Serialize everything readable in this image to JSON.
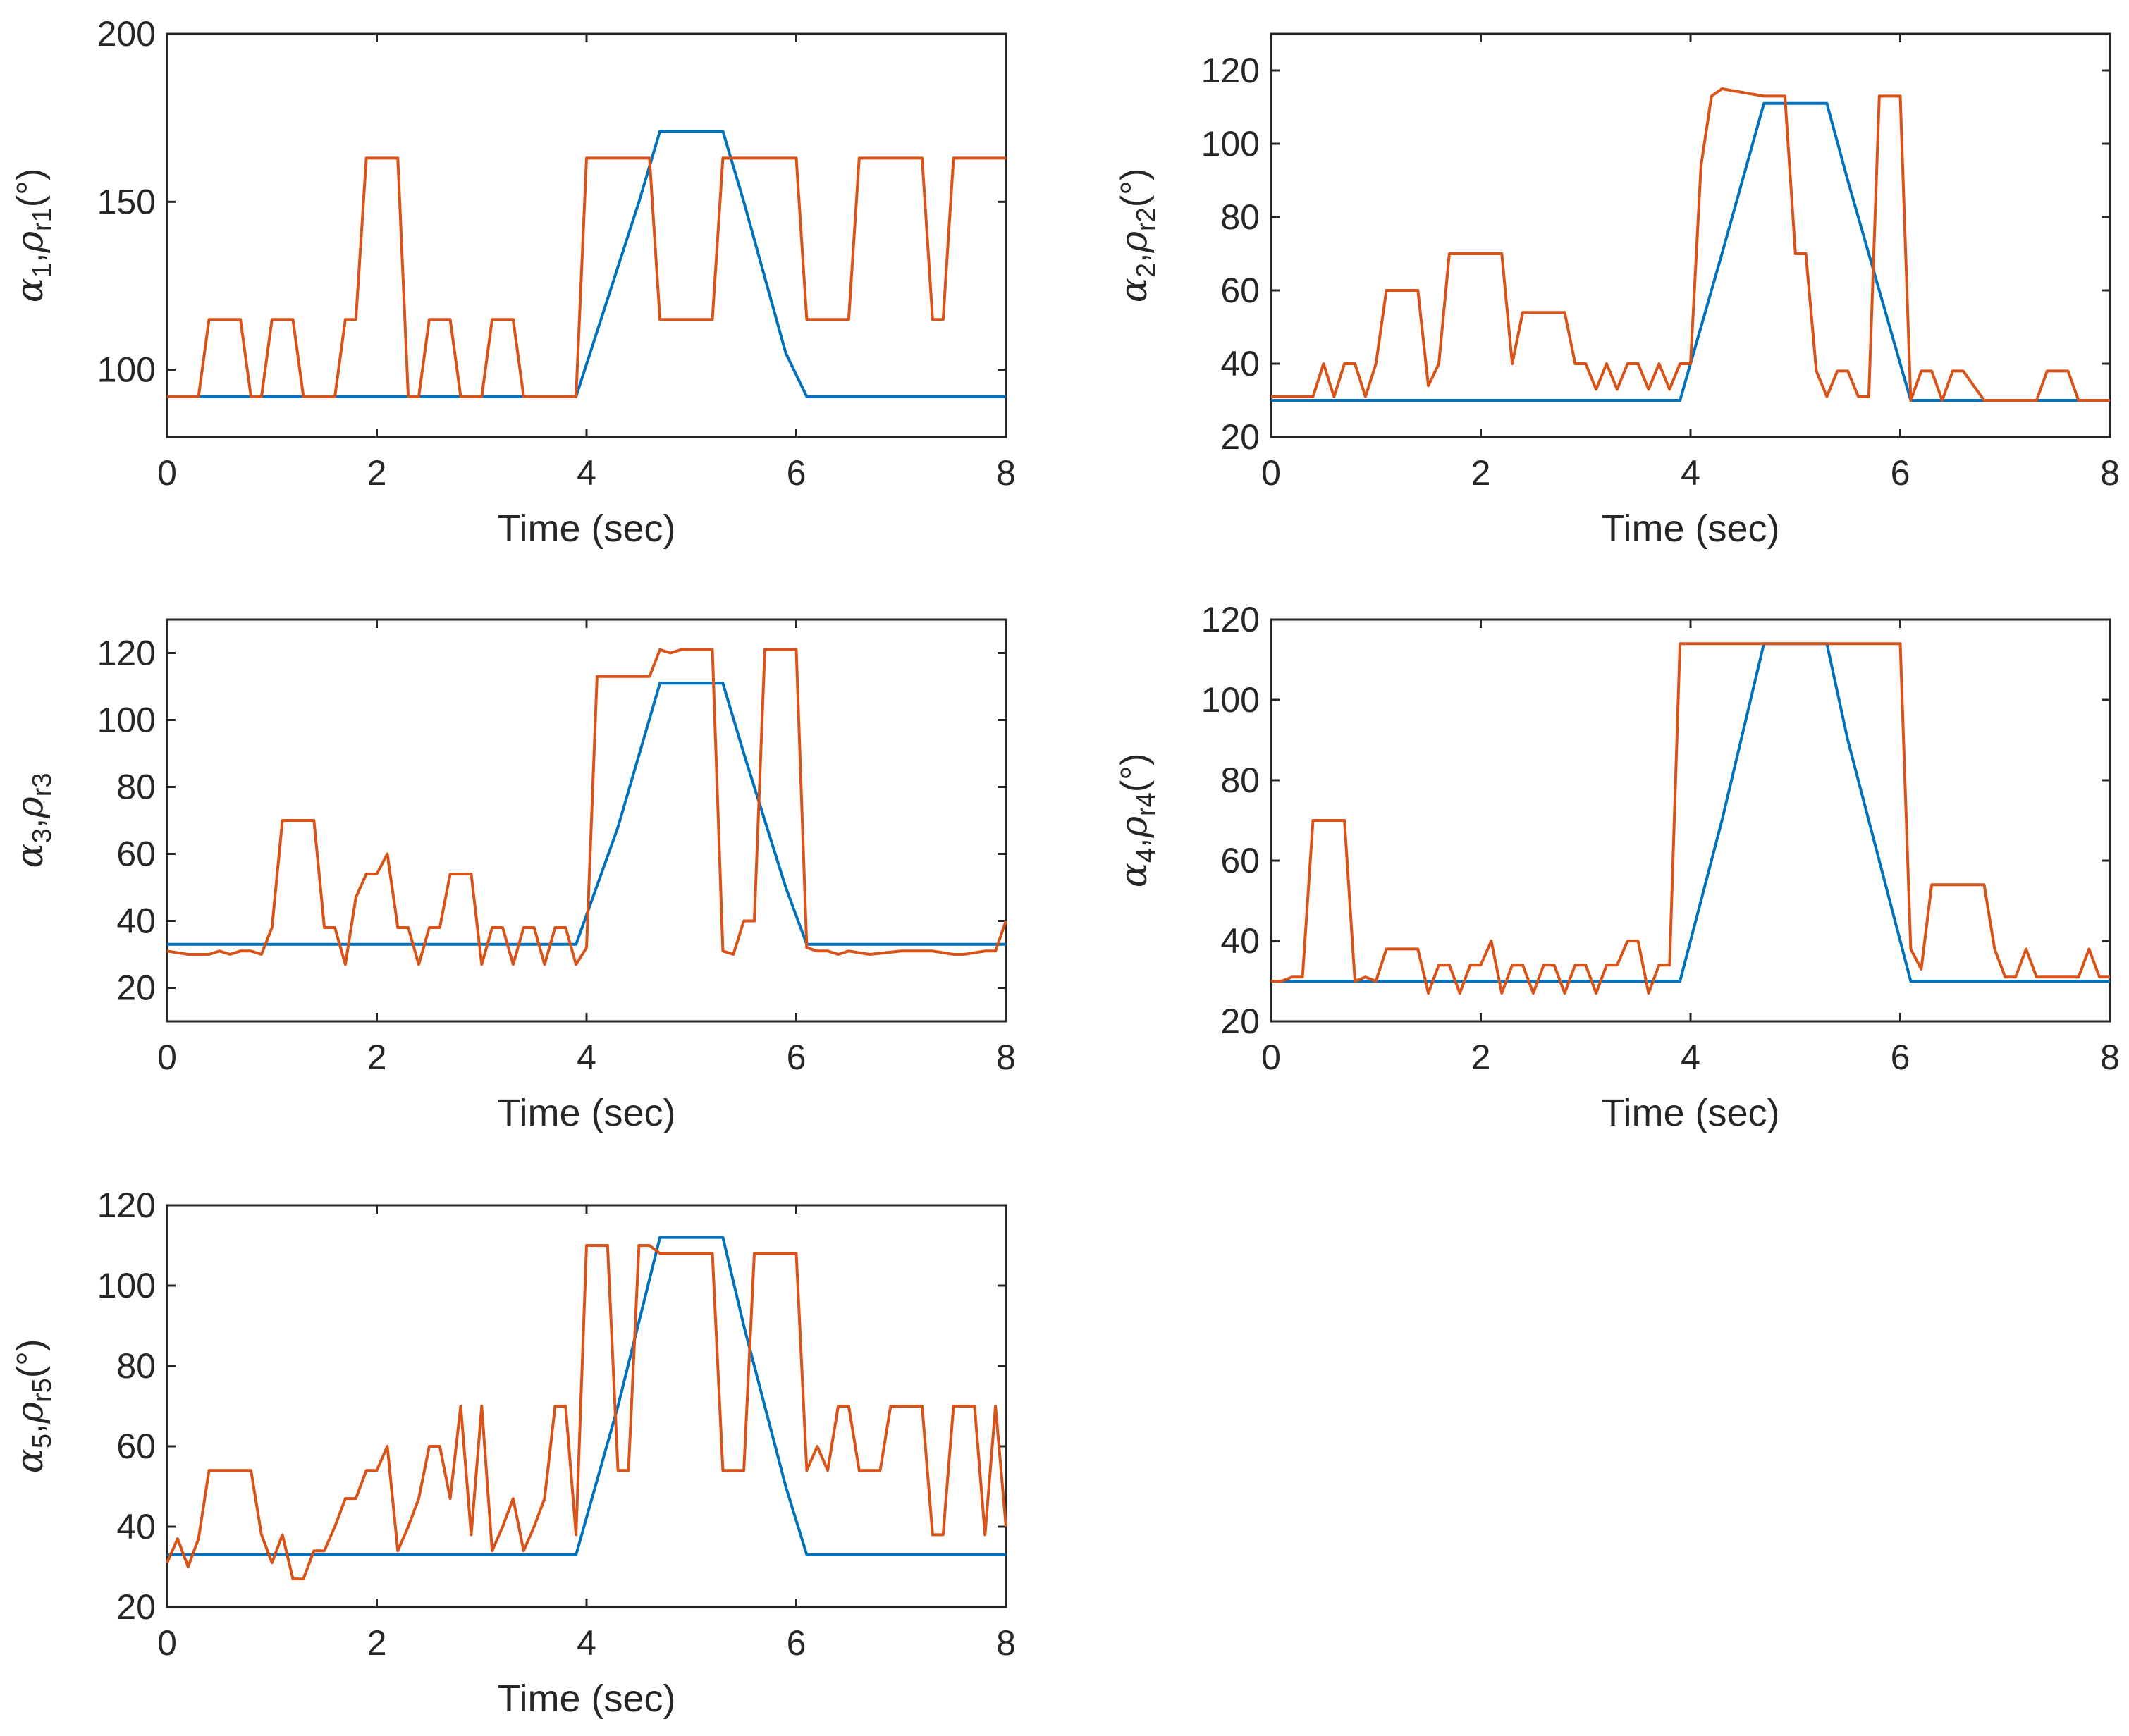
{
  "chart_data": [
    {
      "type": "line",
      "xlabel": "Time (sec)",
      "ylabel": {
        "greek": "α",
        "idx": "1",
        "rho": "ρ",
        "sub": "r1",
        "unit": "(°)"
      },
      "xlim": [
        0,
        8
      ],
      "ylim": [
        80,
        200
      ],
      "xticks": [
        0,
        2,
        4,
        6,
        8
      ],
      "yticks": [
        100,
        150,
        200
      ],
      "series": [
        {
          "name": "alpha",
          "color": "#0072BD",
          "x": [
            0,
            3.9,
            4.5,
            4.7,
            5.3,
            5.5,
            5.9,
            6.1,
            8
          ],
          "y": [
            92,
            92,
            150,
            171,
            171,
            150,
            105,
            92,
            92
          ]
        },
        {
          "name": "rho",
          "color": "#D95319",
          "x": [
            0,
            0.3,
            0.4,
            0.7,
            0.8,
            0.9,
            1.0,
            1.2,
            1.3,
            1.6,
            1.7,
            1.8,
            1.9,
            2.2,
            2.3,
            2.4,
            2.5,
            2.7,
            2.8,
            3.0,
            3.1,
            3.3,
            3.4,
            3.9,
            4.0,
            4.6,
            4.7,
            5.2,
            5.3,
            6.0,
            6.1,
            6.5,
            6.6,
            7.2,
            7.3,
            7.4,
            7.5,
            8.0
          ],
          "y": [
            92,
            92,
            115,
            115,
            92,
            92,
            115,
            115,
            92,
            92,
            115,
            115,
            163,
            163,
            92,
            92,
            115,
            115,
            92,
            92,
            115,
            115,
            92,
            92,
            163,
            163,
            115,
            115,
            163,
            163,
            115,
            115,
            163,
            163,
            115,
            115,
            163,
            163
          ]
        }
      ]
    },
    {
      "type": "line",
      "xlabel": "Time (sec)",
      "ylabel": {
        "greek": "α",
        "idx": "2",
        "rho": "ρ",
        "sub": "r2",
        "unit": "(°)"
      },
      "xlim": [
        0,
        8
      ],
      "ylim": [
        20,
        130
      ],
      "xticks": [
        0,
        2,
        4,
        6,
        8
      ],
      "yticks": [
        20,
        40,
        60,
        80,
        100,
        120
      ],
      "series": [
        {
          "name": "alpha",
          "color": "#0072BD",
          "x": [
            0,
            3.9,
            4.3,
            4.7,
            5.3,
            5.5,
            5.9,
            6.1,
            8
          ],
          "y": [
            30,
            30,
            70,
            111,
            111,
            90,
            50,
            30,
            30
          ]
        },
        {
          "name": "rho",
          "color": "#D95319",
          "x": [
            0,
            0.4,
            0.5,
            0.6,
            0.7,
            0.8,
            0.9,
            1.0,
            1.1,
            1.4,
            1.5,
            1.6,
            1.7,
            2.2,
            2.3,
            2.4,
            2.8,
            2.9,
            3.0,
            3.1,
            3.2,
            3.3,
            3.4,
            3.5,
            3.6,
            3.7,
            3.8,
            3.9,
            4.0,
            4.1,
            4.2,
            4.3,
            4.7,
            4.8,
            4.9,
            5.0,
            5.1,
            5.2,
            5.3,
            5.4,
            5.5,
            5.6,
            5.7,
            5.8,
            5.9,
            6.0,
            6.1,
            6.2,
            6.3,
            6.4,
            6.5,
            6.6,
            6.8,
            7.3,
            7.4,
            7.6,
            7.7,
            8.0
          ],
          "y": [
            31,
            31,
            40,
            31,
            40,
            40,
            31,
            40,
            60,
            60,
            34,
            40,
            70,
            70,
            40,
            54,
            54,
            40,
            40,
            33,
            40,
            33,
            40,
            40,
            33,
            40,
            33,
            40,
            40,
            94,
            113,
            115,
            113,
            113,
            113,
            70,
            70,
            38,
            31,
            38,
            38,
            31,
            31,
            113,
            113,
            113,
            30,
            38,
            38,
            30,
            38,
            38,
            30,
            30,
            38,
            38,
            30,
            30
          ]
        }
      ]
    },
    {
      "type": "line",
      "xlabel": "Time (sec)",
      "ylabel": {
        "greek": "α",
        "idx": "3",
        "rho": "ρ",
        "sub": "r3",
        "unit": ""
      },
      "xlim": [
        0,
        8
      ],
      "ylim": [
        10,
        130
      ],
      "xticks": [
        0,
        2,
        4,
        6,
        8
      ],
      "yticks": [
        20,
        40,
        60,
        80,
        100,
        120
      ],
      "series": [
        {
          "name": "alpha",
          "color": "#0072BD",
          "x": [
            0,
            3.9,
            4.3,
            4.7,
            5.3,
            5.5,
            5.9,
            6.1,
            8
          ],
          "y": [
            33,
            33,
            68,
            111,
            111,
            90,
            50,
            33,
            33
          ]
        },
        {
          "name": "rho",
          "color": "#D95319",
          "x": [
            0,
            0.2,
            0.3,
            0.4,
            0.5,
            0.6,
            0.7,
            0.8,
            0.9,
            1.0,
            1.1,
            1.4,
            1.5,
            1.6,
            1.7,
            1.8,
            1.9,
            2.0,
            2.1,
            2.2,
            2.3,
            2.4,
            2.5,
            2.6,
            2.7,
            2.9,
            3.0,
            3.1,
            3.2,
            3.3,
            3.4,
            3.5,
            3.6,
            3.7,
            3.8,
            3.9,
            4.0,
            4.1,
            4.6,
            4.7,
            4.8,
            4.9,
            5.2,
            5.3,
            5.4,
            5.5,
            5.6,
            5.7,
            6.0,
            6.1,
            6.2,
            6.3,
            6.4,
            6.5,
            6.7,
            7.0,
            7.1,
            7.3,
            7.5,
            7.6,
            7.8,
            7.9,
            8.0
          ],
          "y": [
            31,
            30,
            30,
            30,
            31,
            30,
            31,
            31,
            30,
            38,
            70,
            70,
            38,
            38,
            27,
            47,
            54,
            54,
            60,
            38,
            38,
            27,
            38,
            38,
            54,
            54,
            27,
            38,
            38,
            27,
            38,
            38,
            27,
            38,
            38,
            27,
            32,
            113,
            113,
            121,
            120,
            121,
            121,
            31,
            30,
            40,
            40,
            121,
            121,
            32,
            31,
            31,
            30,
            31,
            30,
            31,
            31,
            31,
            30,
            30,
            31,
            31,
            40
          ]
        }
      ]
    },
    {
      "type": "line",
      "xlabel": "Time (sec)",
      "ylabel": {
        "greek": "α",
        "idx": "4",
        "rho": "ρ",
        "sub": "r4",
        "unit": "(°)"
      },
      "xlim": [
        0,
        8
      ],
      "ylim": [
        20,
        120
      ],
      "xticks": [
        0,
        2,
        4,
        6,
        8
      ],
      "yticks": [
        20,
        40,
        60,
        80,
        100,
        120
      ],
      "series": [
        {
          "name": "alpha",
          "color": "#0072BD",
          "x": [
            0,
            3.9,
            4.3,
            4.7,
            5.3,
            5.5,
            5.9,
            6.1,
            8
          ],
          "y": [
            30,
            30,
            70,
            114,
            114,
            90,
            50,
            30,
            30
          ]
        },
        {
          "name": "rho",
          "color": "#D95319",
          "x": [
            0,
            0.1,
            0.2,
            0.3,
            0.4,
            0.7,
            0.8,
            0.9,
            1.0,
            1.1,
            1.4,
            1.5,
            1.6,
            1.7,
            1.8,
            1.9,
            2.0,
            2.1,
            2.2,
            2.3,
            2.4,
            2.5,
            2.6,
            2.7,
            2.8,
            2.9,
            3.0,
            3.1,
            3.2,
            3.3,
            3.4,
            3.5,
            3.6,
            3.7,
            3.8,
            3.9,
            4.0,
            6.0,
            6.1,
            6.2,
            6.3,
            6.8,
            6.9,
            7.0,
            7.1,
            7.2,
            7.3,
            7.7,
            7.8,
            7.9,
            8.0
          ],
          "y": [
            30,
            30,
            31,
            31,
            70,
            70,
            30,
            31,
            30,
            38,
            38,
            27,
            34,
            34,
            27,
            34,
            34,
            40,
            27,
            34,
            34,
            27,
            34,
            34,
            27,
            34,
            34,
            27,
            34,
            34,
            40,
            40,
            27,
            34,
            34,
            114,
            114,
            114,
            38,
            33,
            54,
            54,
            38,
            31,
            31,
            38,
            31,
            31,
            38,
            31,
            31
          ]
        }
      ]
    },
    {
      "type": "line",
      "xlabel": "Time (sec)",
      "ylabel": {
        "greek": "α",
        "idx": "5",
        "rho": "ρ",
        "sub": "r5",
        "unit": "(°)"
      },
      "xlim": [
        0,
        8
      ],
      "ylim": [
        20,
        120
      ],
      "xticks": [
        0,
        2,
        4,
        6,
        8
      ],
      "yticks": [
        20,
        40,
        60,
        80,
        100,
        120
      ],
      "series": [
        {
          "name": "alpha",
          "color": "#0072BD",
          "x": [
            0,
            3.9,
            4.3,
            4.7,
            5.3,
            5.5,
            5.9,
            6.1,
            8
          ],
          "y": [
            33,
            33,
            70,
            112,
            112,
            90,
            50,
            33,
            33
          ]
        },
        {
          "name": "rho",
          "color": "#D95319",
          "x": [
            0,
            0.1,
            0.2,
            0.3,
            0.4,
            0.8,
            0.9,
            1.0,
            1.1,
            1.2,
            1.3,
            1.4,
            1.5,
            1.6,
            1.7,
            1.8,
            1.9,
            2.0,
            2.1,
            2.2,
            2.3,
            2.4,
            2.5,
            2.6,
            2.7,
            2.8,
            2.9,
            3.0,
            3.1,
            3.2,
            3.3,
            3.4,
            3.5,
            3.6,
            3.7,
            3.8,
            3.9,
            4.0,
            4.2,
            4.3,
            4.4,
            4.5,
            4.6,
            4.7,
            4.8,
            5.2,
            5.3,
            5.5,
            5.6,
            6.0,
            6.1,
            6.2,
            6.3,
            6.4,
            6.5,
            6.6,
            6.8,
            6.9,
            7.2,
            7.3,
            7.4,
            7.5,
            7.7,
            7.8,
            7.9,
            8.0
          ],
          "y": [
            31,
            37,
            30,
            37,
            54,
            54,
            38,
            31,
            38,
            27,
            27,
            34,
            34,
            40,
            47,
            47,
            54,
            54,
            60,
            34,
            40,
            47,
            60,
            60,
            47,
            70,
            38,
            70,
            34,
            40,
            47,
            34,
            40,
            47,
            70,
            70,
            38,
            110,
            110,
            54,
            54,
            110,
            110,
            108,
            108,
            108,
            54,
            54,
            108,
            108,
            54,
            60,
            54,
            70,
            70,
            54,
            54,
            70,
            70,
            38,
            38,
            70,
            70,
            38,
            70,
            40
          ]
        }
      ]
    }
  ]
}
